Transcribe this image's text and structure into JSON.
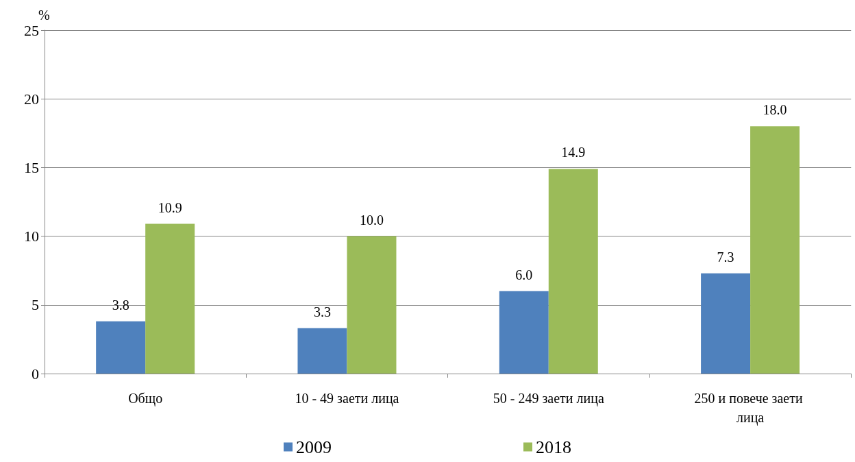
{
  "chart_data": {
    "type": "bar",
    "ylabel": "%",
    "categories": [
      "Общо",
      "10 - 49 заети лица",
      "50 - 249 заети лица",
      "250 и повече заети лица"
    ],
    "series": [
      {
        "name": "2009",
        "color": "#4f81bd",
        "values": [
          3.8,
          3.3,
          6.0,
          7.3
        ],
        "value_labels": [
          "3.8",
          "3.3",
          "6.0",
          "7.3"
        ]
      },
      {
        "name": "2018",
        "color": "#9bbb59",
        "values": [
          10.9,
          10.0,
          14.9,
          18.0
        ],
        "value_labels": [
          "10.9",
          "10.0",
          "14.9",
          "18.0"
        ]
      }
    ],
    "ylim": [
      0,
      25
    ],
    "yticks": [
      0,
      5,
      10,
      15,
      20,
      25
    ],
    "grid": "y",
    "legend": "bottom"
  }
}
